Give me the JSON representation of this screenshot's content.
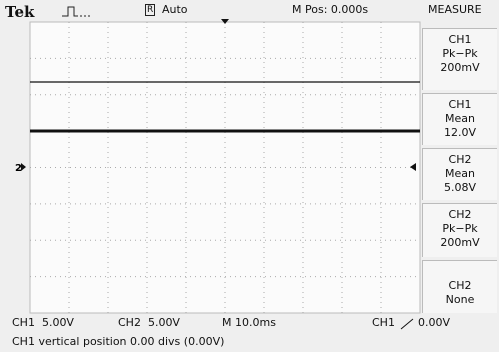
{
  "header": {
    "brand": "Tek",
    "trigger_icon": "R",
    "trigger_mode": "Auto",
    "horizontal_position": "M Pos: 0.000s"
  },
  "menu": {
    "title": "MEASURE",
    "items": [
      {
        "lines": [
          "CH1",
          "Pk−Pk",
          "200mV"
        ]
      },
      {
        "lines": [
          "CH1",
          "Mean",
          "12.0V"
        ]
      },
      {
        "lines": [
          "CH2",
          "Mean",
          "5.08V"
        ]
      },
      {
        "lines": [
          "CH2",
          "Pk−Pk",
          "200mV"
        ]
      },
      {
        "lines": [
          "CH2",
          "None"
        ]
      }
    ]
  },
  "display": {
    "ch2_marker": "2"
  },
  "status": {
    "ch1_scale": "CH1  5.00V",
    "ch2_scale": "CH2  5.00V",
    "timebase": "M 10.0ms",
    "trigger_source": "CH1",
    "trigger_level": "0.00V"
  },
  "message": "CH1 vertical position 0.00 divs (0.00V)"
}
